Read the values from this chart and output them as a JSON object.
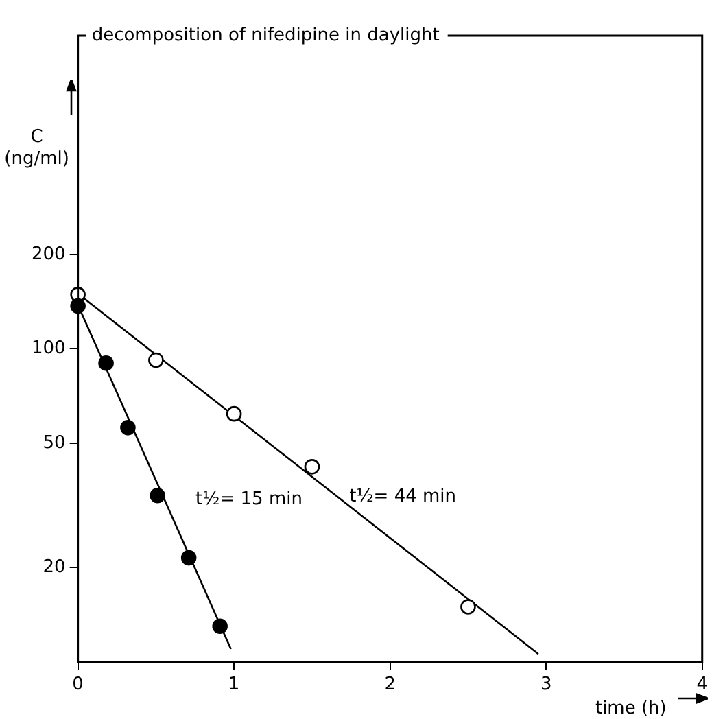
{
  "chart_data": {
    "type": "scatter",
    "title": "decomposition of nifedipine in daylight",
    "xlabel": "time (h)",
    "ylabel": "C\n(ng/ml)",
    "log": "y",
    "xlim": [
      0,
      4
    ],
    "xticks": [
      0,
      1,
      2,
      3,
      4
    ],
    "ylim": [
      10,
      1000
    ],
    "yticks": [
      20,
      50,
      100,
      200
    ],
    "grid": false,
    "legend": false,
    "series": [
      {
        "type": "scatter",
        "marker": "circle",
        "color": "#000000",
        "x": [
          0,
          0.18,
          0.32,
          0.51,
          0.71,
          0.91
        ],
        "values": [
          137,
          90,
          56,
          34,
          21.5,
          13
        ]
      },
      {
        "type": "scatter",
        "marker": "circle",
        "color": "#ffffff",
        "x": [
          0,
          0.5,
          1,
          1.5,
          2.5
        ],
        "values": [
          149,
          92,
          62,
          42,
          15
        ]
      },
      {
        "type": "line",
        "marker": "none",
        "color": "#000000",
        "x": [
          0,
          0.98
        ],
        "values": [
          138,
          11
        ]
      },
      {
        "type": "line",
        "marker": "none",
        "color": "#000000",
        "x": [
          0,
          2.95
        ],
        "values": [
          150,
          10.6
        ]
      }
    ],
    "annotations": [
      "t½= 15 min",
      "t½= 44 min"
    ]
  }
}
